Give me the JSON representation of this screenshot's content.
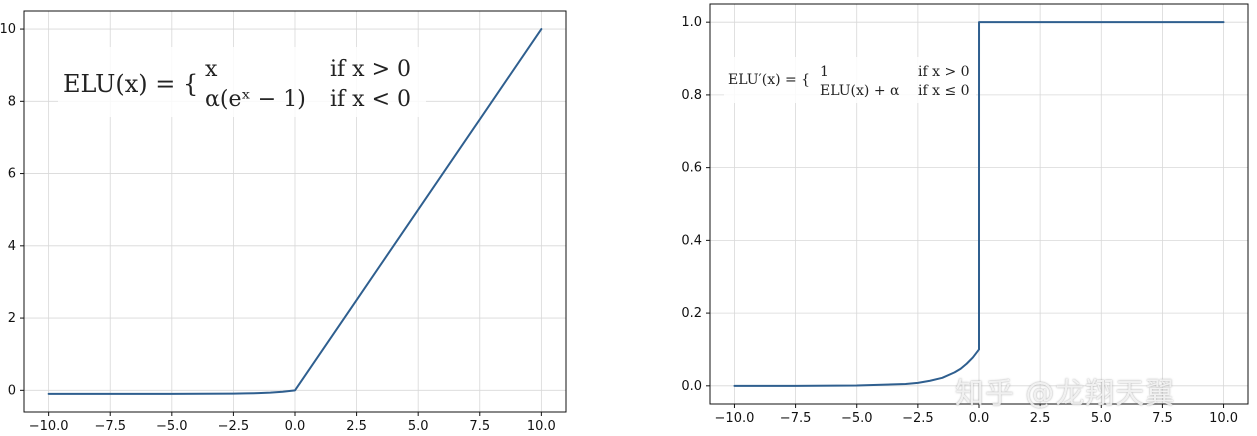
{
  "chart_data": [
    {
      "type": "line",
      "title": "",
      "xlabel": "",
      "ylabel": "",
      "xlim": [
        -11.0,
        11.0
      ],
      "ylim": [
        -0.6,
        10.5
      ],
      "grid": true,
      "xticks": [
        -10.0,
        -7.5,
        -5.0,
        -2.5,
        0.0,
        2.5,
        5.0,
        7.5,
        10.0
      ],
      "xtick_labels": [
        "−10.0",
        "−7.5",
        "−5.0",
        "−2.5",
        "0.0",
        "2.5",
        "5.0",
        "7.5",
        "10.0"
      ],
      "yticks": [
        0,
        2,
        4,
        6,
        8,
        10
      ],
      "ytick_labels": [
        "0",
        "2",
        "4",
        "6",
        "8",
        "10"
      ],
      "series": [
        {
          "color": "#2f5f8f",
          "x": [
            -10,
            -7.5,
            -5,
            -2.5,
            -2,
            -1.5,
            -1,
            -0.5,
            0,
            2.5,
            5,
            7.5,
            10
          ],
          "y": [
            -0.1,
            -0.1,
            -0.099,
            -0.092,
            -0.086,
            -0.078,
            -0.063,
            -0.039,
            0,
            2.5,
            5,
            7.5,
            10
          ]
        }
      ],
      "annotation": {
        "lhs": "ELU(x) = {",
        "case1_value": "x",
        "case1_condition": "if x > 0",
        "case2_value": "α(eˣ − 1)",
        "case2_condition": "if x < 0"
      }
    },
    {
      "type": "line",
      "title": "",
      "xlabel": "",
      "ylabel": "",
      "xlim": [
        -11.0,
        11.0
      ],
      "ylim": [
        -0.05,
        1.05
      ],
      "grid": true,
      "xticks": [
        -10.0,
        -7.5,
        -5.0,
        -2.5,
        0.0,
        2.5,
        5.0,
        7.5,
        10.0
      ],
      "xtick_labels": [
        "−10.0",
        "−7.5",
        "−5.0",
        "−2.5",
        "0.0",
        "2.5",
        "5.0",
        "7.5",
        "10.0"
      ],
      "yticks": [
        0.0,
        0.2,
        0.4,
        0.6,
        0.8,
        1.0
      ],
      "ytick_labels": [
        "0.0",
        "0.2",
        "0.4",
        "0.6",
        "0.8",
        "1.0"
      ],
      "series": [
        {
          "color": "#2f5f8f",
          "x": [
            -10,
            -7.5,
            -5,
            -3,
            -2.5,
            -2,
            -1.5,
            -1,
            -0.75,
            -0.5,
            -0.25,
            0,
            0.001,
            10
          ],
          "y": [
            0.0,
            0.0,
            0.001,
            0.005,
            0.008,
            0.014,
            0.022,
            0.037,
            0.047,
            0.061,
            0.078,
            0.1,
            1.0,
            1.0
          ]
        }
      ],
      "annotation": {
        "lhs": "ELU′(x) = {",
        "case1_value": "1",
        "case1_condition": "if x > 0",
        "case2_value": "ELU(x) + α",
        "case2_condition": "if x ≤ 0"
      }
    }
  ],
  "watermark": "知乎 @龙翔天翼"
}
